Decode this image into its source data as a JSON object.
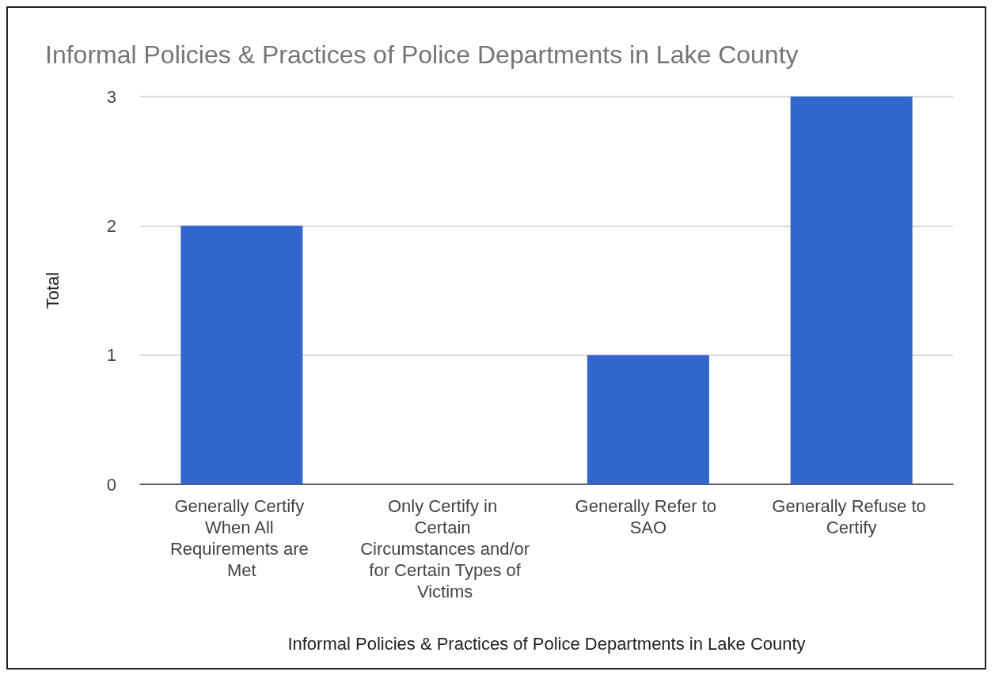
{
  "chart_data": {
    "type": "bar",
    "title": "Informal Policies & Practices of Police Departments in Lake County",
    "xlabel": "Informal Policies & Practices of Police Departments in Lake County",
    "ylabel": "Total",
    "categories": [
      "Generally Certify When All Requirements are Met",
      "Only Certify in Certain Circumstances and/or for Certain Types of Victims",
      "Generally Refer to SAO",
      "Generally Refuse to Certify"
    ],
    "values": [
      2,
      0,
      1,
      3
    ],
    "color": "#3366cc",
    "ylim": [
      0,
      3
    ],
    "yticks": [
      0,
      1,
      2,
      3
    ],
    "grid": "y"
  }
}
